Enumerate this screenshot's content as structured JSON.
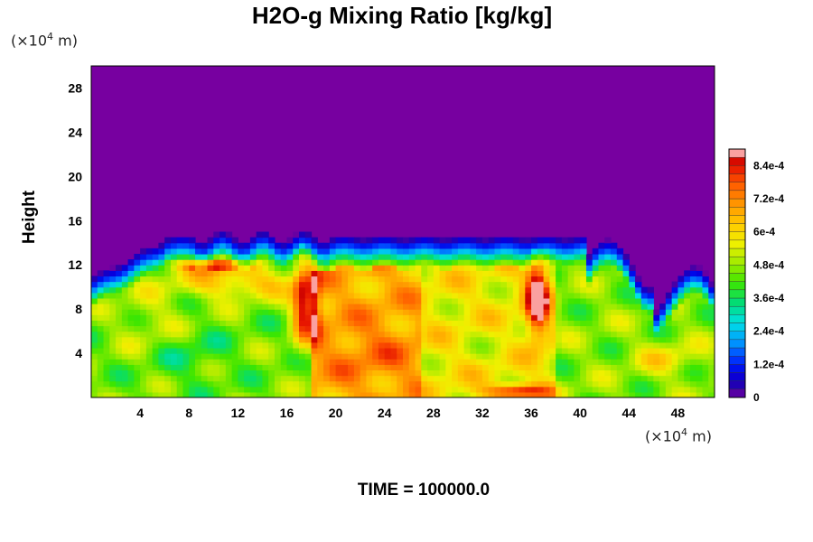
{
  "chart_data": {
    "type": "heatmap",
    "title": "H2O-g Mixing Ratio [kg/kg]",
    "ylabel": "Height",
    "x_unit_prefix": "(×10",
    "x_unit_exp": "4",
    "x_unit_suffix": " m)",
    "y_unit_prefix": "(×10",
    "y_unit_exp": "4",
    "y_unit_suffix": " m)",
    "footer": "TIME = 100000.0",
    "xlim": [
      0,
      51
    ],
    "ylim": [
      0,
      30
    ],
    "x_ticks": [
      4,
      8,
      12,
      16,
      20,
      24,
      28,
      32,
      36,
      40,
      44,
      48
    ],
    "x_tick_labels": [
      "4",
      "8",
      "12",
      "16",
      "20",
      "24",
      "28",
      "32",
      "36",
      "40",
      "44",
      "48"
    ],
    "y_ticks": [
      4,
      8,
      12,
      16,
      20,
      24,
      28
    ],
    "y_tick_labels": [
      "4",
      "8",
      "12",
      "16",
      "20",
      "24",
      "28"
    ],
    "colorbar": {
      "min": 0,
      "max": 0.0009,
      "levels": 30,
      "tick_values": [
        0,
        0.00012,
        0.00024,
        0.00036,
        0.00048,
        0.0006,
        0.00072,
        0.00084
      ],
      "tick_labels": [
        "0",
        "1.2e-4",
        "2.4e-4",
        "3.6e-4",
        "4.8e-4",
        "6e-4",
        "7.2e-4",
        "8.4e-4"
      ]
    },
    "colors": {
      "dry": "#7700a0",
      "background": "#ffffff"
    }
  }
}
